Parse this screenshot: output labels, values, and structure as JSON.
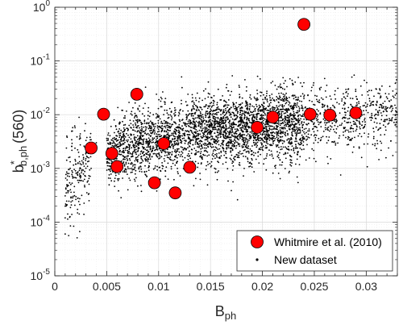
{
  "chart_data": {
    "type": "scatter",
    "title": "",
    "xlabel": {
      "main": "B",
      "sub": "ph"
    },
    "ylabel": {
      "main": "b",
      "sup": "*",
      "sub": "b,ph",
      "suffix": "(560)"
    },
    "xlim": [
      0,
      0.033
    ],
    "ylim": [
      1e-05,
      1
    ],
    "yscale": "log",
    "grid": true,
    "legend_position": "bottom-right",
    "x_ticks": [
      "0",
      "0.005",
      "0.01",
      "0.015",
      "0.02",
      "0.025",
      "0.03"
    ],
    "y_ticks": [
      {
        "base": "10",
        "exp": "0"
      },
      {
        "base": "10",
        "exp": "-1"
      },
      {
        "base": "10",
        "exp": "-2"
      },
      {
        "base": "10",
        "exp": "-3"
      },
      {
        "base": "10",
        "exp": "-4"
      },
      {
        "base": "10",
        "exp": "-5"
      }
    ],
    "series": [
      {
        "name": "Whitmire et al. (2010)",
        "color": "#ff0000",
        "marker": "large-circle",
        "points": [
          {
            "x": 0.0035,
            "y": 0.0024
          },
          {
            "x": 0.0047,
            "y": 0.0102
          },
          {
            "x": 0.0055,
            "y": 0.0019
          },
          {
            "x": 0.006,
            "y": 0.00108
          },
          {
            "x": 0.0079,
            "y": 0.024
          },
          {
            "x": 0.0096,
            "y": 0.00054
          },
          {
            "x": 0.0105,
            "y": 0.0029
          },
          {
            "x": 0.0116,
            "y": 0.00035
          },
          {
            "x": 0.013,
            "y": 0.00105
          },
          {
            "x": 0.0195,
            "y": 0.0058
          },
          {
            "x": 0.021,
            "y": 0.009
          },
          {
            "x": 0.024,
            "y": 0.48
          },
          {
            "x": 0.0246,
            "y": 0.0102
          },
          {
            "x": 0.0265,
            "y": 0.0098
          },
          {
            "x": 0.029,
            "y": 0.0108
          }
        ]
      },
      {
        "name": "New dataset",
        "color": "#000000",
        "marker": "dot",
        "approx_count": 4000,
        "trend": "y rises from about 0.0004 at x=0.001 to about 0.01 at x=0.033, scatter spanning roughly one decade",
        "points": [
          {
            "x": 0.001,
            "y": 6e-05
          },
          {
            "x": 0.001,
            "y": 0.00012
          },
          {
            "x": 0.0011,
            "y": 0.00035
          },
          {
            "x": 0.0012,
            "y": 0.0008
          },
          {
            "x": 0.0015,
            "y": 0.0004
          },
          {
            "x": 0.002,
            "y": 0.0012
          },
          {
            "x": 0.0025,
            "y": 0.0007
          },
          {
            "x": 0.003,
            "y": 0.002
          },
          {
            "x": 0.0035,
            "y": 0.001
          },
          {
            "x": 0.004,
            "y": 0.003
          },
          {
            "x": 0.005,
            "y": 0.0015
          },
          {
            "x": 0.006,
            "y": 0.004
          },
          {
            "x": 0.007,
            "y": 0.0025
          },
          {
            "x": 0.008,
            "y": 0.005
          },
          {
            "x": 0.009,
            "y": 0.003
          },
          {
            "x": 0.01,
            "y": 0.006
          },
          {
            "x": 0.011,
            "y": 0.004
          },
          {
            "x": 0.012,
            "y": 0.008
          },
          {
            "x": 0.013,
            "y": 0.0035
          },
          {
            "x": 0.014,
            "y": 0.007
          },
          {
            "x": 0.015,
            "y": 0.005
          },
          {
            "x": 0.016,
            "y": 0.01
          },
          {
            "x": 0.017,
            "y": 0.006
          },
          {
            "x": 0.018,
            "y": 0.012
          },
          {
            "x": 0.019,
            "y": 0.007
          },
          {
            "x": 0.02,
            "y": 0.015
          },
          {
            "x": 0.021,
            "y": 0.008
          },
          {
            "x": 0.022,
            "y": 0.018
          },
          {
            "x": 0.023,
            "y": 0.009
          },
          {
            "x": 0.024,
            "y": 0.02
          },
          {
            "x": 0.025,
            "y": 0.006
          },
          {
            "x": 0.026,
            "y": 0.015
          },
          {
            "x": 0.027,
            "y": 0.008
          },
          {
            "x": 0.028,
            "y": 0.02
          },
          {
            "x": 0.029,
            "y": 0.005
          },
          {
            "x": 0.03,
            "y": 0.012
          },
          {
            "x": 0.031,
            "y": 0.015
          },
          {
            "x": 0.032,
            "y": 0.008
          },
          {
            "x": 0.033,
            "y": 0.01
          }
        ]
      }
    ],
    "colors": {
      "axis": "#262626",
      "grid_major": "#d9d9d9",
      "grid_minor": "#ececec",
      "red_marker_fill": "#ff0000",
      "red_marker_edge": "#000000",
      "dot": "#000000"
    }
  }
}
